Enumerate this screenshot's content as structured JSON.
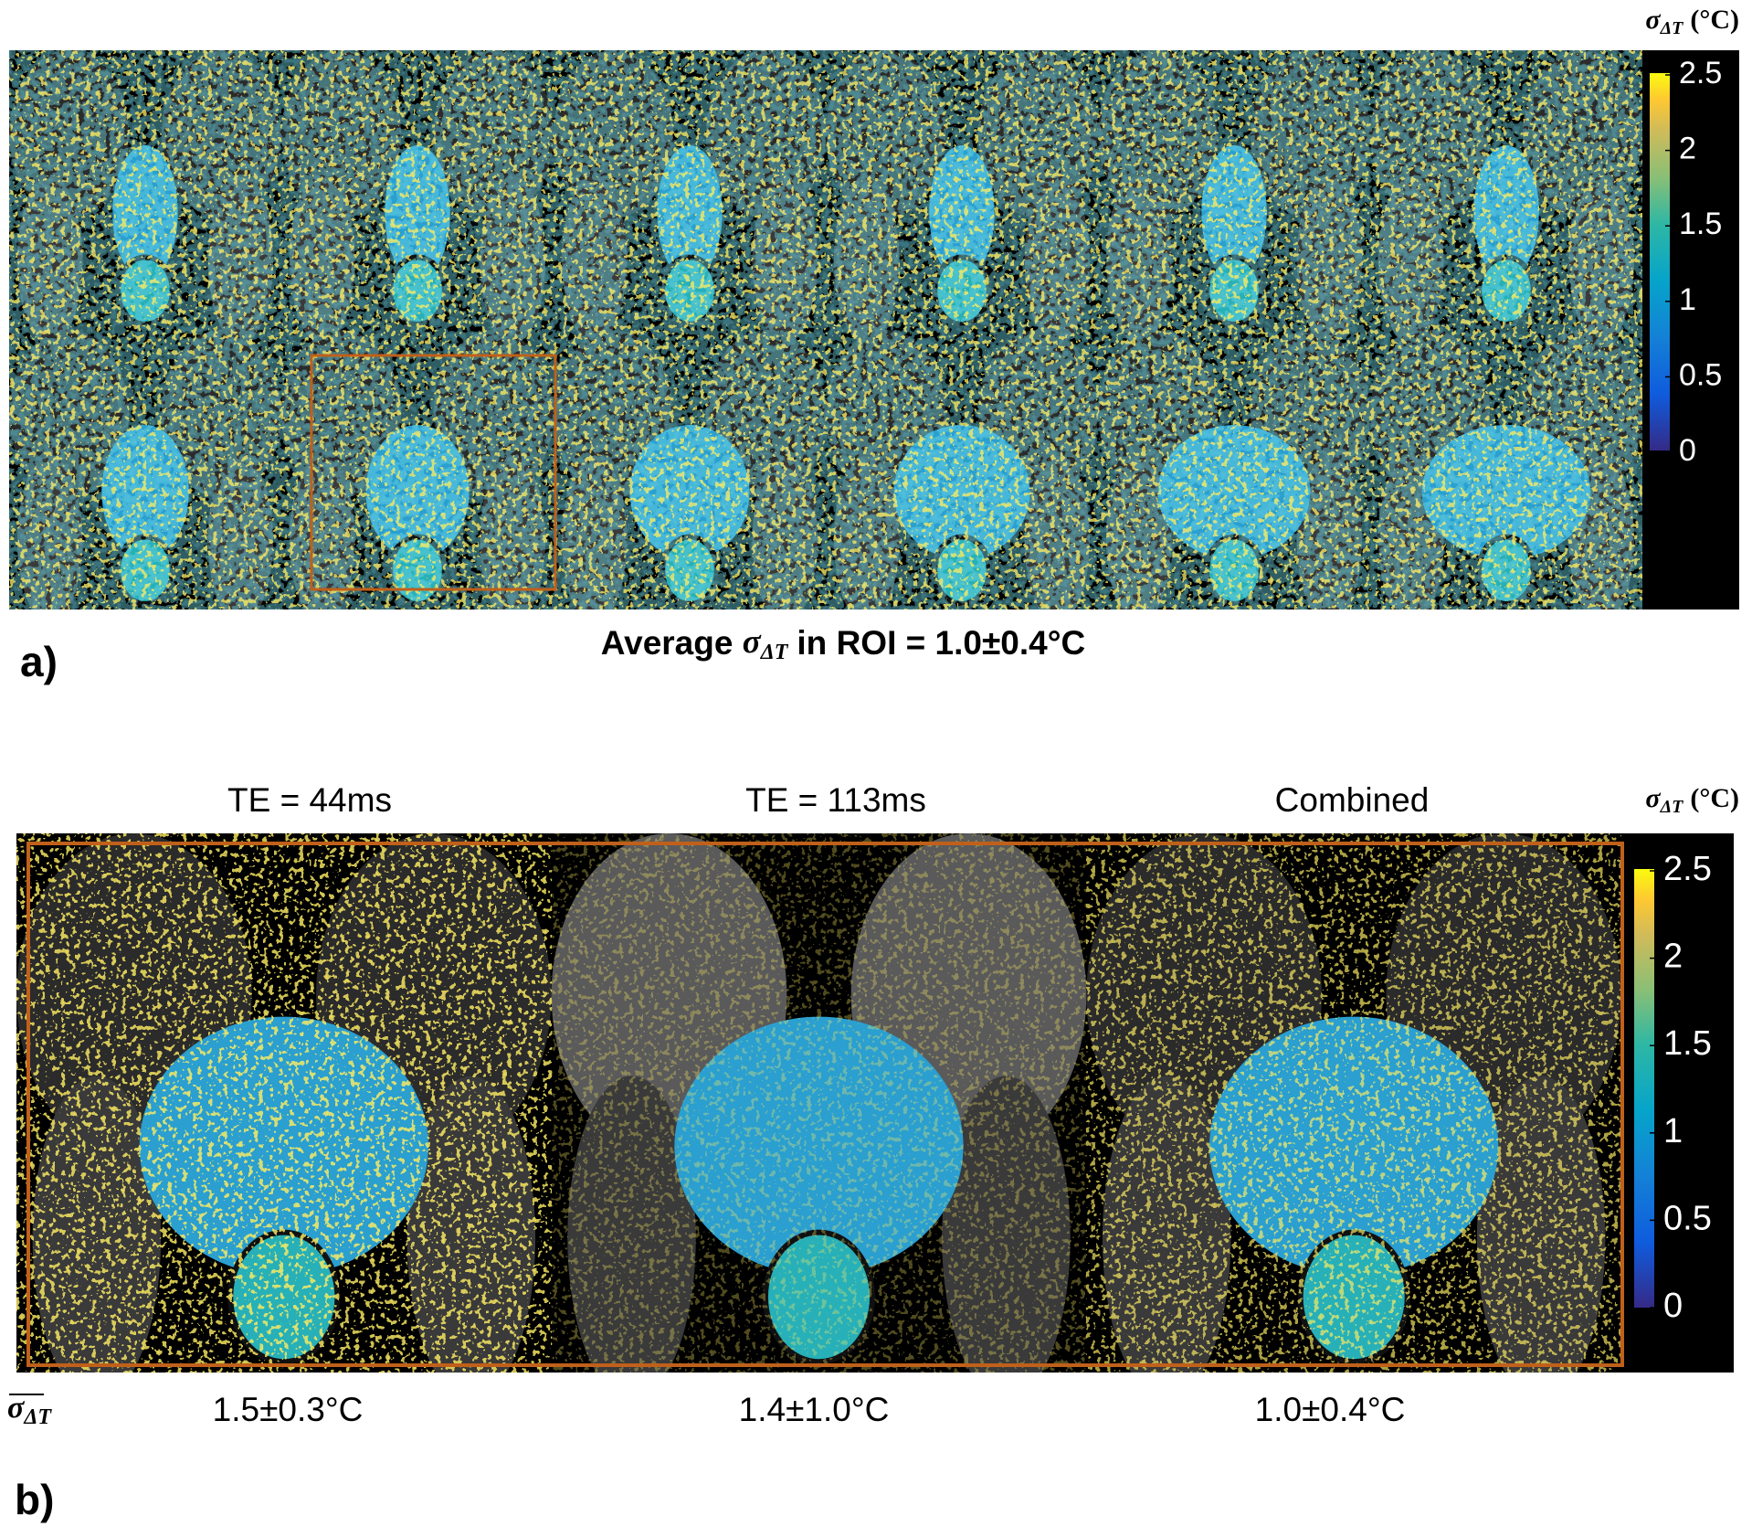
{
  "panel_a": {
    "label": "a)",
    "caption": {
      "prefix": "Average",
      "symbol": "σ",
      "subscript": "ΔT",
      "suffix": "in ROI = 1.0±0.4°C"
    },
    "colorbar": {
      "symbol": "σ",
      "subscript": "ΔT",
      "unit": "(°C)",
      "lim": [
        0,
        2.5
      ],
      "ticks": [
        0,
        0.5,
        1,
        1.5,
        2,
        2.5
      ]
    }
  },
  "panel_b": {
    "label": "b)",
    "row_label": {
      "symbol": "σ",
      "subscript": "ΔT"
    },
    "columns": [
      {
        "title": "TE = 44ms",
        "value": "1.5±0.3°C"
      },
      {
        "title": "TE = 113ms",
        "value": "1.4±1.0°C"
      },
      {
        "title": "Combined",
        "value": "1.0±0.4°C"
      }
    ],
    "colorbar": {
      "symbol": "σ",
      "subscript": "ΔT",
      "unit": "(°C)",
      "lim": [
        0,
        2.5
      ],
      "ticks": [
        0,
        0.5,
        1,
        1.5,
        2,
        2.5
      ]
    }
  }
}
